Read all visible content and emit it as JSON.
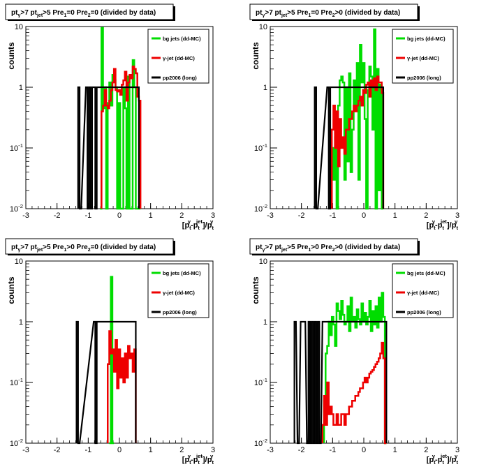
{
  "chart_data": [
    {
      "type": "line",
      "title": "pt_{γ}>7  pt_{jet}>5  Pre_{1}=0  Pre_{2}=0 (divided by data)",
      "xlabel": "[p_t^γ-p_t^jet]/p_t^γ",
      "ylabel": "counts",
      "xlim": [
        -3,
        3
      ],
      "ylim": [
        0.01,
        10
      ],
      "ylog": true,
      "x_ticks": [
        "-3",
        "-2",
        "-1",
        "0",
        "1",
        "2",
        "3"
      ],
      "y_ticks": [
        "10^-2",
        "10^-1",
        "1",
        "10"
      ],
      "legend": [
        "bg jets (dd-MC)",
        "γ-jet (dd-MC)",
        "pp2006 (long)"
      ],
      "legend_position": "top-right",
      "series": [
        {
          "name": "bg jets (dd-MC)",
          "color": "#00dd00",
          "x": [
            -0.6,
            -0.55,
            -0.5,
            -0.45,
            -0.4,
            -0.35,
            -0.3,
            -0.25,
            -0.2,
            -0.15,
            -0.1,
            -0.05,
            0.0,
            0.05,
            0.1,
            0.15,
            0.2,
            0.25,
            0.3,
            0.35,
            0.4,
            0.45,
            0.5,
            0.55,
            0.6,
            0.65
          ],
          "y": [
            0.01,
            9.5,
            0.45,
            1.0,
            0.01,
            0.55,
            1.2,
            0.5,
            1.6,
            1.3,
            1.0,
            0.01,
            0.55,
            0.01,
            0.01,
            1.0,
            0.45,
            0.01,
            1.5,
            0.01,
            0.01,
            2.8,
            1.0,
            0.01,
            0.01,
            0.01
          ]
        },
        {
          "name": "γ-jet (dd-MC)",
          "color": "#ee0000",
          "x": [
            -0.55,
            -0.5,
            -0.45,
            -0.4,
            -0.35,
            -0.3,
            -0.25,
            -0.2,
            -0.15,
            -0.1,
            -0.05,
            0.0,
            0.05,
            0.1,
            0.15,
            0.2,
            0.25,
            0.3,
            0.35,
            0.4,
            0.45,
            0.5,
            0.55,
            0.6,
            0.65
          ],
          "y": [
            0.4,
            0.5,
            0.9,
            0.5,
            0.45,
            0.6,
            0.9,
            1.2,
            2.0,
            0.9,
            0.85,
            0.9,
            0.75,
            1.1,
            1.3,
            1.8,
            0.6,
            1.2,
            1.6,
            1.4,
            2.2,
            2.0,
            1.7,
            0.7,
            0.6
          ]
        },
        {
          "name": "pp2006 (long)",
          "color": "#000000",
          "x": [
            -1.3,
            -1.25,
            -1.05,
            -1.0,
            -0.95,
            -0.9,
            -0.85,
            -0.8,
            -0.75,
            -0.7,
            -0.65,
            -0.6,
            -0.55,
            -0.5,
            -0.45,
            -0.4,
            -0.35,
            -0.3,
            -0.25,
            -0.2,
            -0.15,
            -0.1,
            -0.05,
            0.0,
            0.05,
            0.1,
            0.15,
            0.2,
            0.25,
            0.3,
            0.35,
            0.4,
            0.45,
            0.5,
            0.55,
            0.6
          ],
          "y": [
            1,
            0.01,
            1,
            0.01,
            1,
            0.01,
            1,
            1,
            0.01,
            1,
            1,
            1,
            1,
            1,
            1,
            1,
            1,
            1,
            1,
            1,
            1,
            1,
            1,
            1,
            1,
            1,
            1,
            1,
            1,
            1,
            1,
            1,
            1,
            1,
            1,
            1
          ]
        }
      ]
    },
    {
      "type": "line",
      "title": "pt_{γ}>7  pt_{jet}>5  Pre_{1}=0  Pre_{2}>0 (divided by data)",
      "xlabel": "[p_t^γ-p_t^jet]/p_t^γ",
      "ylabel": "counts",
      "xlim": [
        -3,
        3
      ],
      "ylim": [
        0.01,
        10
      ],
      "ylog": true,
      "x_ticks": [
        "-3",
        "-2",
        "-1",
        "0",
        "1",
        "2",
        "3"
      ],
      "y_ticks": [
        "10^-2",
        "10^-1",
        "1",
        "10"
      ],
      "legend": [
        "bg jets (dd-MC)",
        "γ-jet (dd-MC)",
        "pp2006 (long)"
      ],
      "legend_position": "top-right",
      "series": [
        {
          "name": "bg jets (dd-MC)",
          "color": "#00dd00",
          "x": [
            -1.0,
            -0.95,
            -0.9,
            -0.85,
            -0.8,
            -0.75,
            -0.7,
            -0.65,
            -0.6,
            -0.55,
            -0.5,
            -0.45,
            -0.4,
            -0.35,
            -0.3,
            -0.25,
            -0.2,
            -0.15,
            -0.1,
            -0.05,
            0.0,
            0.05,
            0.1,
            0.15,
            0.2,
            0.25,
            0.3,
            0.35,
            0.4,
            0.45,
            0.5,
            0.55,
            0.6
          ],
          "y": [
            0.1,
            0.03,
            0.15,
            0.01,
            0.5,
            1.3,
            1.5,
            1.2,
            0.03,
            1.0,
            0.06,
            1.7,
            0.04,
            0.2,
            1.3,
            0.5,
            2.5,
            0.03,
            5.0,
            1.2,
            2.5,
            0.3,
            0.01,
            0.9,
            2.2,
            1.5,
            0.2,
            9.0,
            0.01,
            2.0,
            0.02,
            1.1,
            0.01
          ]
        },
        {
          "name": "γ-jet (dd-MC)",
          "color": "#ee0000",
          "x": [
            -1.0,
            -0.95,
            -0.9,
            -0.85,
            -0.8,
            -0.75,
            -0.7,
            -0.65,
            -0.6,
            -0.55,
            -0.5,
            -0.45,
            -0.4,
            -0.35,
            -0.3,
            -0.25,
            -0.2,
            -0.15,
            -0.1,
            -0.05,
            0.0,
            0.05,
            0.1,
            0.15,
            0.2,
            0.25,
            0.3,
            0.35,
            0.4,
            0.45,
            0.5,
            0.55,
            0.6
          ],
          "y": [
            0.2,
            0.5,
            0.1,
            0.4,
            0.05,
            0.3,
            0.1,
            0.15,
            0.08,
            0.2,
            0.2,
            0.3,
            0.3,
            0.4,
            0.5,
            0.4,
            0.5,
            0.6,
            0.7,
            0.5,
            0.9,
            0.8,
            1.1,
            1.2,
            0.7,
            1.3,
            1.0,
            1.4,
            0.9,
            1.5,
            1.2,
            1.2,
            0.8
          ]
        },
        {
          "name": "pp2006 (long)",
          "color": "#000000",
          "x": [
            -1.55,
            -1.5,
            -1.15,
            -1.1,
            -1.05,
            -1.0,
            -0.95,
            -0.9,
            -0.85,
            -0.8,
            -0.75,
            -0.7,
            -0.65,
            -0.6,
            -0.55,
            -0.5,
            -0.45,
            -0.4,
            -0.35,
            -0.3,
            -0.25,
            -0.2,
            -0.15,
            -0.1,
            -0.05,
            0.0,
            0.05,
            0.1,
            0.15,
            0.2,
            0.25,
            0.3,
            0.35,
            0.4,
            0.45,
            0.5,
            0.55,
            0.6
          ],
          "y": [
            1,
            0.01,
            1,
            0.01,
            1,
            1,
            1,
            1,
            1,
            1,
            1,
            1,
            1,
            1,
            1,
            1,
            1,
            1,
            1,
            1,
            1,
            1,
            1,
            1,
            1,
            1,
            1,
            1,
            1,
            1,
            1,
            1,
            1,
            1,
            1,
            1,
            1,
            1
          ]
        }
      ]
    },
    {
      "type": "line",
      "title": "pt_{γ}>7  pt_{jet}>5  Pre_{1}>0  Pre_{2}=0 (divided by data)",
      "xlabel": "[p_t^γ-p_t^jet]/p_t^γ",
      "ylabel": "counts",
      "xlim": [
        -3,
        3
      ],
      "ylim": [
        0.01,
        10
      ],
      "ylog": true,
      "x_ticks": [
        "-3",
        "-2",
        "-1",
        "0",
        "1",
        "2",
        "3"
      ],
      "y_ticks": [
        "10^-2",
        "10^-1",
        "1",
        "10"
      ],
      "legend": [
        "bg jets (dd-MC)",
        "γ-jet (dd-MC)",
        "pp2006 (long)"
      ],
      "legend_position": "top-right",
      "series": [
        {
          "name": "bg jets (dd-MC)",
          "color": "#00dd00",
          "x": [
            -0.3,
            -0.25,
            -0.2
          ],
          "y": [
            0.01,
            5.5,
            0.01
          ]
        },
        {
          "name": "γ-jet (dd-MC)",
          "color": "#ee0000",
          "x": [
            -0.35,
            -0.3,
            -0.25,
            -0.2,
            -0.15,
            -0.1,
            -0.05,
            0.0,
            0.05,
            0.1,
            0.15,
            0.2,
            0.25,
            0.3,
            0.35,
            0.4,
            0.45,
            0.5
          ],
          "y": [
            0.2,
            0.7,
            0.3,
            0.35,
            0.15,
            0.5,
            0.08,
            0.35,
            0.12,
            0.25,
            0.1,
            0.3,
            0.12,
            0.4,
            0.25,
            0.3,
            0.15,
            0.35
          ]
        },
        {
          "name": "pp2006 (long)",
          "color": "#000000",
          "x": [
            -1.35,
            -1.3,
            -0.8,
            -0.75,
            -0.7,
            -0.65,
            -0.6,
            -0.55,
            -0.5,
            -0.45,
            -0.4,
            -0.35,
            -0.3,
            -0.25,
            -0.2,
            -0.15,
            -0.1,
            -0.05,
            0.0,
            0.05,
            0.1,
            0.15,
            0.2,
            0.25,
            0.3,
            0.35,
            0.4,
            0.45,
            0.5
          ],
          "y": [
            1,
            0.01,
            1,
            0.01,
            1,
            1,
            1,
            1,
            1,
            1,
            1,
            1,
            1,
            1,
            1,
            1,
            1,
            1,
            1,
            1,
            1,
            1,
            1,
            1,
            1,
            1,
            1,
            1,
            1
          ]
        }
      ]
    },
    {
      "type": "line",
      "title": "pt_{γ}>7  pt_{jet}>5  Pre_{1}>0  Pre_{2}>0 (divided by data)",
      "xlabel": "[p_t^γ-p_t^jet]/p_t^γ",
      "ylabel": "counts",
      "xlim": [
        -3,
        3
      ],
      "ylim": [
        0.01,
        10
      ],
      "ylog": true,
      "x_ticks": [
        "-3",
        "-2",
        "-1",
        "0",
        "1",
        "2",
        "3"
      ],
      "y_ticks": [
        "10^-2",
        "10^-1",
        "1",
        "10"
      ],
      "legend": [
        "bg jets (dd-MC)",
        "γ-jet (dd-MC)",
        "pp2006 (long)"
      ],
      "legend_position": "top-right",
      "series": [
        {
          "name": "bg jets (dd-MC)",
          "color": "#00dd00",
          "x": [
            -1.25,
            -1.2,
            -1.15,
            -1.1,
            -1.05,
            -1.0,
            -0.95,
            -0.9,
            -0.85,
            -0.8,
            -0.75,
            -0.7,
            -0.65,
            -0.6,
            -0.55,
            -0.5,
            -0.45,
            -0.4,
            -0.35,
            -0.3,
            -0.25,
            -0.2,
            -0.15,
            -0.1,
            -0.05,
            0.0,
            0.05,
            0.1,
            0.15,
            0.2,
            0.25,
            0.3,
            0.35,
            0.4,
            0.45,
            0.5,
            0.55,
            0.6,
            0.65,
            0.7
          ],
          "y": [
            0.05,
            0.3,
            0.4,
            1.0,
            0.6,
            1.2,
            0.9,
            0.4,
            2.0,
            1.5,
            1.1,
            2.2,
            1.3,
            0.9,
            1.0,
            1.8,
            0.7,
            2.5,
            1.0,
            1.2,
            0.8,
            1.6,
            1.1,
            0.9,
            2.0,
            1.0,
            1.4,
            0.9,
            1.2,
            2.2,
            0.7,
            1.5,
            0.9,
            1.8,
            0.8,
            2.5,
            1.0,
            3.0,
            1.2,
            0.01
          ]
        },
        {
          "name": "γ-jet (dd-MC)",
          "color": "#ee0000",
          "x": [
            -1.3,
            -1.25,
            -1.2,
            -1.15,
            -1.1,
            -1.05,
            -1.0,
            -0.95,
            -0.9,
            -0.85,
            -0.8,
            -0.75,
            -0.7,
            -0.65,
            -0.6,
            -0.55,
            -0.5,
            -0.45,
            -0.4,
            -0.35,
            -0.3,
            -0.25,
            -0.2,
            -0.15,
            -0.1,
            -0.05,
            0.0,
            0.05,
            0.1,
            0.15,
            0.2,
            0.25,
            0.3,
            0.35,
            0.4,
            0.45,
            0.5,
            0.55,
            0.6,
            0.65,
            0.7
          ],
          "y": [
            0.02,
            0.06,
            0.02,
            0.1,
            0.03,
            0.04,
            0.03,
            0.02,
            0.02,
            0.03,
            0.02,
            0.02,
            0.03,
            0.03,
            0.02,
            0.03,
            0.03,
            0.04,
            0.04,
            0.05,
            0.05,
            0.06,
            0.06,
            0.07,
            0.08,
            0.08,
            0.1,
            0.12,
            0.1,
            0.12,
            0.14,
            0.15,
            0.16,
            0.18,
            0.2,
            0.22,
            0.25,
            0.3,
            0.45,
            0.25,
            0.01
          ]
        },
        {
          "name": "pp2006 (long)",
          "color": "#000000",
          "x": [
            -2.2,
            -2.1,
            -2.0,
            -1.9,
            -1.8,
            -1.75,
            -1.7,
            -1.65,
            -1.6,
            -1.55,
            -1.5,
            -1.45,
            -1.4,
            -1.3,
            -1.25,
            -1.2,
            -1.15,
            -1.1,
            -1.05,
            -1.0,
            -0.95,
            -0.9,
            -0.85,
            -0.8,
            -0.75,
            -0.7,
            -0.65,
            -0.6,
            -0.55,
            -0.5,
            -0.45,
            -0.4,
            -0.35,
            -0.3,
            -0.25,
            -0.2,
            -0.15,
            -0.1,
            -0.05,
            0.0,
            0.05,
            0.1,
            0.15,
            0.2,
            0.25,
            0.3,
            0.35,
            0.4,
            0.45,
            0.5,
            0.55,
            0.6,
            0.65,
            0.7
          ],
          "y": [
            1,
            0.01,
            1,
            1,
            0.01,
            1,
            0.01,
            1,
            0.01,
            1,
            0.01,
            1,
            0.01,
            1,
            1,
            1,
            1,
            1,
            1,
            1,
            1,
            1,
            1,
            1,
            1,
            1,
            1,
            1,
            1,
            1,
            1,
            1,
            1,
            1,
            1,
            1,
            1,
            1,
            1,
            1,
            1,
            1,
            1,
            1,
            1,
            1,
            1,
            1,
            1,
            1,
            1,
            1,
            1,
            1
          ]
        }
      ]
    }
  ]
}
